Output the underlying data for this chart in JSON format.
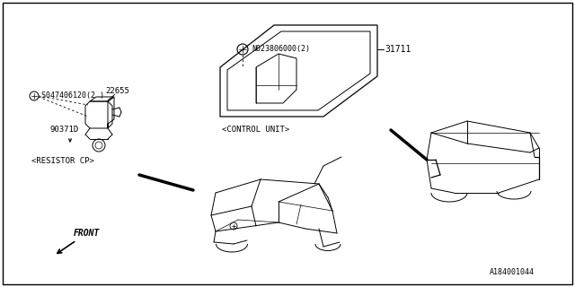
{
  "bg_color": "#ffffff",
  "line_color": "#000000",
  "diagram_ref": "A184001044",
  "part_number_main": "31711",
  "bolt_label": "N023806000(2)",
  "screw_label": "S047406120(2 )",
  "label_22655": "22655",
  "label_903710": "90371D",
  "label_resistor": "<RESISTOR CP>",
  "label_control": "<CONTROL UNIT>",
  "label_front": "FRONT",
  "figsize": [
    6.4,
    3.2
  ],
  "dpi": 100
}
